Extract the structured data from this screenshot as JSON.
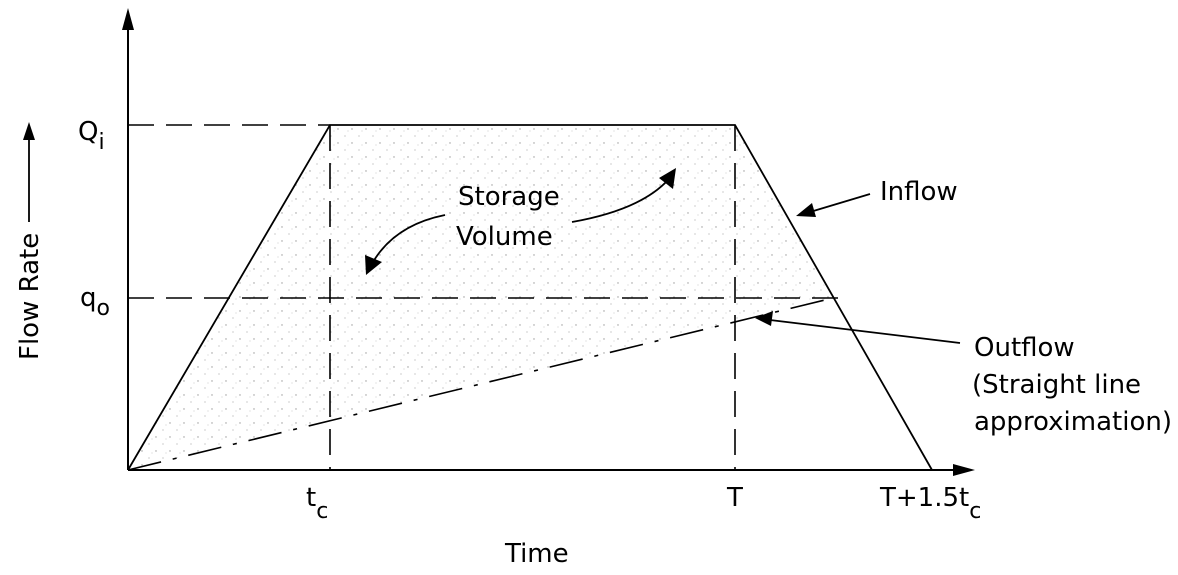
{
  "axes": {
    "y_label": "Flow Rate",
    "x_label": "Time"
  },
  "y_ticks": {
    "Qi": {
      "main": "Q",
      "sub": "i"
    },
    "qo": {
      "main": "q",
      "sub": "o"
    }
  },
  "x_ticks": {
    "tc": {
      "main": "t",
      "sub": "c"
    },
    "T": {
      "main": "T"
    },
    "T_plus": {
      "main": "T+1.5t",
      "sub": "c"
    }
  },
  "annotations": {
    "storage_line1": "Storage",
    "storage_line2": "Volume",
    "inflow": "Inflow",
    "outflow_line1": "Outflow",
    "outflow_line2": "(Straight line",
    "outflow_line3": "approximation)"
  }
}
